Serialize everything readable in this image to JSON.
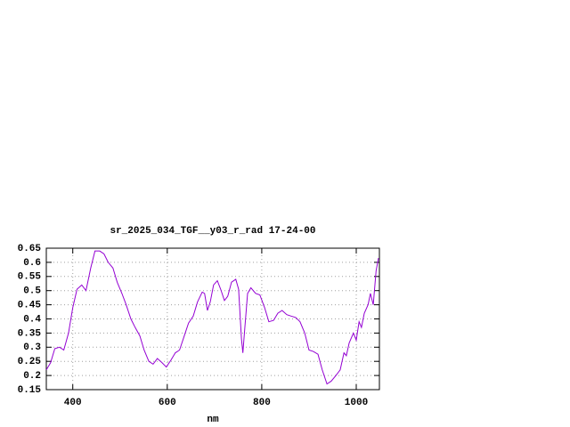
{
  "chart_data": {
    "type": "line",
    "title": "sr_2025_034_TGF__y03_r_rad 17-24-00",
    "xlabel": "nm",
    "x": [
      344,
      353,
      362,
      372,
      381,
      391,
      400,
      409,
      419,
      428,
      438,
      447,
      457,
      466,
      475,
      485,
      494,
      504,
      513,
      523,
      532,
      542,
      551,
      561,
      570,
      579,
      589,
      598,
      608,
      617,
      626,
      636,
      645,
      655,
      664,
      674,
      679,
      685,
      691,
      698,
      706,
      713,
      721,
      728,
      736,
      745,
      751,
      757,
      760,
      764,
      770,
      777,
      787,
      796,
      806,
      815,
      825,
      834,
      843,
      853,
      862,
      872,
      881,
      891,
      900,
      909,
      919,
      928,
      938,
      947,
      957,
      966,
      974,
      979,
      985,
      994,
      1000,
      1006,
      1011,
      1017,
      1025,
      1030,
      1036,
      1042,
      1047
    ],
    "series": [
      {
        "name": "sr_2025_034_TGF__y03_r_rad 17-24-00",
        "color": "#9400d3",
        "values": [
          0.22,
          0.245,
          0.295,
          0.3,
          0.29,
          0.35,
          0.44,
          0.505,
          0.52,
          0.5,
          0.58,
          0.64,
          0.64,
          0.63,
          0.6,
          0.58,
          0.53,
          0.49,
          0.45,
          0.4,
          0.37,
          0.34,
          0.29,
          0.25,
          0.24,
          0.26,
          0.245,
          0.23,
          0.255,
          0.28,
          0.29,
          0.34,
          0.385,
          0.41,
          0.46,
          0.495,
          0.49,
          0.43,
          0.46,
          0.52,
          0.535,
          0.505,
          0.465,
          0.48,
          0.53,
          0.54,
          0.505,
          0.33,
          0.28,
          0.365,
          0.49,
          0.51,
          0.49,
          0.485,
          0.44,
          0.39,
          0.395,
          0.42,
          0.43,
          0.415,
          0.41,
          0.405,
          0.39,
          0.35,
          0.29,
          0.285,
          0.275,
          0.22,
          0.17,
          0.18,
          0.2,
          0.22,
          0.28,
          0.27,
          0.315,
          0.35,
          0.325,
          0.39,
          0.37,
          0.42,
          0.45,
          0.49,
          0.45,
          0.57,
          0.615
        ]
      }
    ],
    "xlim": [
      344,
      1049
    ],
    "xticks": [
      400,
      600,
      800,
      1000
    ],
    "ylim": [
      0.15,
      0.65
    ],
    "yticks": [
      0.15,
      0.2,
      0.25,
      0.3,
      0.35,
      0.4,
      0.45,
      0.5,
      0.55,
      0.6,
      0.65
    ],
    "grid": true
  }
}
